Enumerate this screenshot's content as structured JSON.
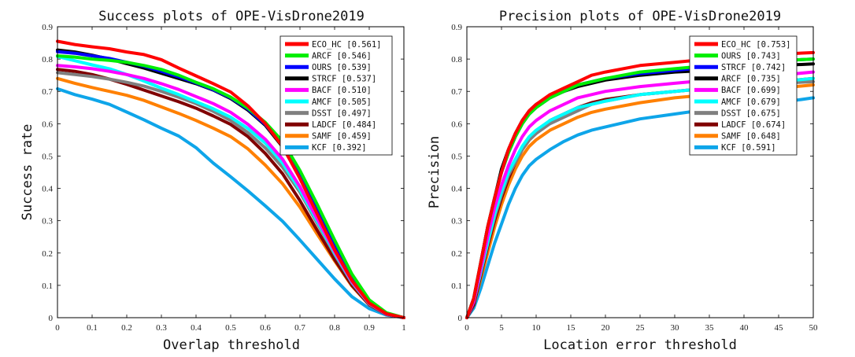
{
  "chart_data": [
    {
      "type": "line",
      "title": "Success plots of OPE-VisDrone2019",
      "xlabel": "Overlap threshold",
      "ylabel": "Success rate",
      "xlim": [
        0,
        1
      ],
      "ylim": [
        0,
        0.9
      ],
      "xticks": [
        0,
        0.1,
        0.2,
        0.3,
        0.4,
        0.5,
        0.6,
        0.7,
        0.8,
        0.9,
        1
      ],
      "xtick_labels": [
        "0",
        "0.1",
        "0.2",
        "0.3",
        "0.4",
        "0.5",
        "0.6",
        "0.7",
        "0.8",
        "0.9",
        "1"
      ],
      "yticks": [
        0,
        0.1,
        0.2,
        0.3,
        0.4,
        0.5,
        0.6,
        0.7,
        0.8,
        0.9
      ],
      "ytick_labels": [
        "0",
        "0.1",
        "0.2",
        "0.3",
        "0.4",
        "0.5",
        "0.6",
        "0.7",
        "0.8",
        "0.9"
      ],
      "legend_position": "top-right",
      "grid": false,
      "x": [
        0,
        0.05,
        0.1,
        0.15,
        0.2,
        0.25,
        0.3,
        0.35,
        0.4,
        0.45,
        0.5,
        0.55,
        0.6,
        0.65,
        0.7,
        0.75,
        0.8,
        0.85,
        0.9,
        0.95,
        1
      ],
      "series": [
        {
          "legend": "ECO_HC [0.561]",
          "color": "#ff0000",
          "values": [
            0.855,
            0.845,
            0.838,
            0.832,
            0.822,
            0.814,
            0.798,
            0.772,
            0.748,
            0.724,
            0.698,
            0.655,
            0.6,
            0.53,
            0.43,
            0.32,
            0.21,
            0.115,
            0.045,
            0.012,
            0
          ]
        },
        {
          "legend": "ARCF [0.546]",
          "color": "#00ee00",
          "values": [
            0.81,
            0.806,
            0.8,
            0.796,
            0.79,
            0.78,
            0.768,
            0.75,
            0.728,
            0.708,
            0.682,
            0.648,
            0.604,
            0.545,
            0.455,
            0.35,
            0.24,
            0.135,
            0.055,
            0.015,
            0
          ]
        },
        {
          "legend": "OURS [0.539]",
          "color": "#0000ff",
          "values": [
            0.823,
            0.818,
            0.81,
            0.802,
            0.79,
            0.778,
            0.762,
            0.745,
            0.726,
            0.705,
            0.68,
            0.645,
            0.598,
            0.532,
            0.44,
            0.33,
            0.222,
            0.122,
            0.048,
            0.012,
            0
          ]
        },
        {
          "legend": "STRCF [0.537]",
          "color": "#000000",
          "values": [
            0.828,
            0.822,
            0.812,
            0.8,
            0.786,
            0.772,
            0.756,
            0.74,
            0.724,
            0.704,
            0.678,
            0.642,
            0.595,
            0.528,
            0.435,
            0.325,
            0.218,
            0.12,
            0.047,
            0.012,
            0
          ]
        },
        {
          "legend": "BACF [0.510]",
          "color": "#ff00ff",
          "values": [
            0.78,
            0.776,
            0.77,
            0.762,
            0.752,
            0.74,
            0.724,
            0.706,
            0.684,
            0.662,
            0.635,
            0.598,
            0.552,
            0.49,
            0.405,
            0.305,
            0.205,
            0.112,
            0.044,
            0.011,
            0
          ]
        },
        {
          "legend": "AMCF [0.505]",
          "color": "#00ffff",
          "values": [
            0.808,
            0.795,
            0.782,
            0.77,
            0.752,
            0.732,
            0.71,
            0.69,
            0.668,
            0.646,
            0.62,
            0.585,
            0.54,
            0.478,
            0.395,
            0.298,
            0.2,
            0.11,
            0.043,
            0.011,
            0
          ]
        },
        {
          "legend": "DSST [0.497]",
          "color": "#808080",
          "values": [
            0.758,
            0.752,
            0.746,
            0.738,
            0.728,
            0.716,
            0.7,
            0.682,
            0.662,
            0.638,
            0.61,
            0.572,
            0.525,
            0.465,
            0.388,
            0.292,
            0.196,
            0.108,
            0.042,
            0.011,
            0
          ]
        },
        {
          "legend": "LADCF [0.484]",
          "color": "#800000",
          "values": [
            0.768,
            0.762,
            0.752,
            0.738,
            0.722,
            0.704,
            0.686,
            0.668,
            0.648,
            0.624,
            0.598,
            0.56,
            0.508,
            0.445,
            0.362,
            0.27,
            0.18,
            0.1,
            0.04,
            0.01,
            0
          ]
        },
        {
          "legend": "SAMF [0.459]",
          "color": "#ff8000",
          "values": [
            0.74,
            0.725,
            0.712,
            0.7,
            0.688,
            0.672,
            0.652,
            0.632,
            0.61,
            0.586,
            0.56,
            0.522,
            0.472,
            0.414,
            0.342,
            0.258,
            0.176,
            0.098,
            0.04,
            0.01,
            0
          ]
        },
        {
          "legend": "KCF [0.392]",
          "color": "#0ea5e9",
          "values": [
            0.708,
            0.69,
            0.676,
            0.66,
            0.636,
            0.612,
            0.586,
            0.562,
            0.526,
            0.478,
            0.436,
            0.392,
            0.346,
            0.298,
            0.24,
            0.18,
            0.12,
            0.065,
            0.028,
            0.008,
            0
          ]
        }
      ]
    },
    {
      "type": "line",
      "title": "Precision plots of OPE-VisDrone2019",
      "xlabel": "Location error threshold",
      "ylabel": "Precision",
      "xlim": [
        0,
        50
      ],
      "ylim": [
        0,
        0.9
      ],
      "xticks": [
        0,
        5,
        10,
        15,
        20,
        25,
        30,
        35,
        40,
        45,
        50
      ],
      "xtick_labels": [
        "0",
        "5",
        "10",
        "15",
        "20",
        "25",
        "30",
        "35",
        "40",
        "45",
        "50"
      ],
      "yticks": [
        0,
        0.1,
        0.2,
        0.3,
        0.4,
        0.5,
        0.6,
        0.7,
        0.8,
        0.9
      ],
      "ytick_labels": [
        "0",
        "0.1",
        "0.2",
        "0.3",
        "0.4",
        "0.5",
        "0.6",
        "0.7",
        "0.8",
        "0.9"
      ],
      "legend_position": "top-right",
      "grid": false,
      "x": [
        0,
        1,
        2,
        3,
        4,
        5,
        6,
        7,
        8,
        9,
        10,
        12,
        14,
        16,
        18,
        20,
        25,
        30,
        35,
        40,
        45,
        50
      ],
      "series": [
        {
          "legend": "ECO_HC [0.753]",
          "color": "#ff0000",
          "values": [
            0,
            0.06,
            0.17,
            0.28,
            0.37,
            0.45,
            0.52,
            0.57,
            0.61,
            0.64,
            0.66,
            0.69,
            0.71,
            0.73,
            0.75,
            0.76,
            0.78,
            0.79,
            0.8,
            0.81,
            0.815,
            0.82
          ]
        },
        {
          "legend": "OURS [0.743]",
          "color": "#00ee00",
          "values": [
            0,
            0.06,
            0.17,
            0.28,
            0.37,
            0.45,
            0.51,
            0.56,
            0.6,
            0.63,
            0.65,
            0.68,
            0.7,
            0.72,
            0.73,
            0.74,
            0.76,
            0.77,
            0.78,
            0.79,
            0.795,
            0.8
          ]
        },
        {
          "legend": "STRCF [0.742]",
          "color": "#0000ff",
          "values": [
            0,
            0.06,
            0.17,
            0.28,
            0.37,
            0.45,
            0.51,
            0.56,
            0.6,
            0.63,
            0.65,
            0.68,
            0.7,
            0.72,
            0.73,
            0.74,
            0.755,
            0.765,
            0.775,
            0.785,
            0.795,
            0.8
          ]
        },
        {
          "legend": "ARCF [0.735]",
          "color": "#000000",
          "values": [
            0,
            0.06,
            0.17,
            0.28,
            0.37,
            0.46,
            0.52,
            0.57,
            0.61,
            0.64,
            0.66,
            0.685,
            0.7,
            0.715,
            0.725,
            0.735,
            0.75,
            0.76,
            0.765,
            0.775,
            0.78,
            0.785
          ]
        },
        {
          "legend": "BACF [0.699]",
          "color": "#ff00ff",
          "values": [
            0,
            0.05,
            0.15,
            0.25,
            0.34,
            0.41,
            0.47,
            0.52,
            0.56,
            0.59,
            0.61,
            0.64,
            0.66,
            0.68,
            0.69,
            0.7,
            0.715,
            0.725,
            0.735,
            0.745,
            0.75,
            0.76
          ]
        },
        {
          "legend": "AMCF [0.679]",
          "color": "#00ffff",
          "values": [
            0,
            0.05,
            0.14,
            0.23,
            0.32,
            0.39,
            0.45,
            0.49,
            0.53,
            0.56,
            0.58,
            0.61,
            0.63,
            0.65,
            0.66,
            0.67,
            0.69,
            0.7,
            0.71,
            0.72,
            0.73,
            0.74
          ]
        },
        {
          "legend": "DSST [0.675]",
          "color": "#808080",
          "values": [
            0,
            0.05,
            0.14,
            0.23,
            0.31,
            0.38,
            0.44,
            0.48,
            0.52,
            0.55,
            0.57,
            0.6,
            0.62,
            0.64,
            0.66,
            0.67,
            0.69,
            0.7,
            0.71,
            0.72,
            0.725,
            0.73
          ]
        },
        {
          "legend": "LADCF [0.674]",
          "color": "#800000",
          "values": [
            0,
            0.04,
            0.13,
            0.22,
            0.3,
            0.37,
            0.43,
            0.48,
            0.52,
            0.55,
            0.57,
            0.61,
            0.63,
            0.65,
            0.665,
            0.675,
            0.69,
            0.7,
            0.71,
            0.72,
            0.73,
            0.74
          ]
        },
        {
          "legend": "SAMF [0.648]",
          "color": "#ff8000",
          "values": [
            0,
            0.04,
            0.12,
            0.2,
            0.28,
            0.35,
            0.41,
            0.46,
            0.5,
            0.53,
            0.55,
            0.58,
            0.6,
            0.62,
            0.635,
            0.645,
            0.665,
            0.68,
            0.69,
            0.7,
            0.71,
            0.72
          ]
        },
        {
          "legend": "KCF [0.591]",
          "color": "#0ea5e9",
          "values": [
            0,
            0.03,
            0.09,
            0.16,
            0.23,
            0.29,
            0.35,
            0.4,
            0.44,
            0.47,
            0.49,
            0.52,
            0.545,
            0.565,
            0.58,
            0.59,
            0.615,
            0.63,
            0.645,
            0.655,
            0.665,
            0.68
          ]
        }
      ]
    }
  ]
}
